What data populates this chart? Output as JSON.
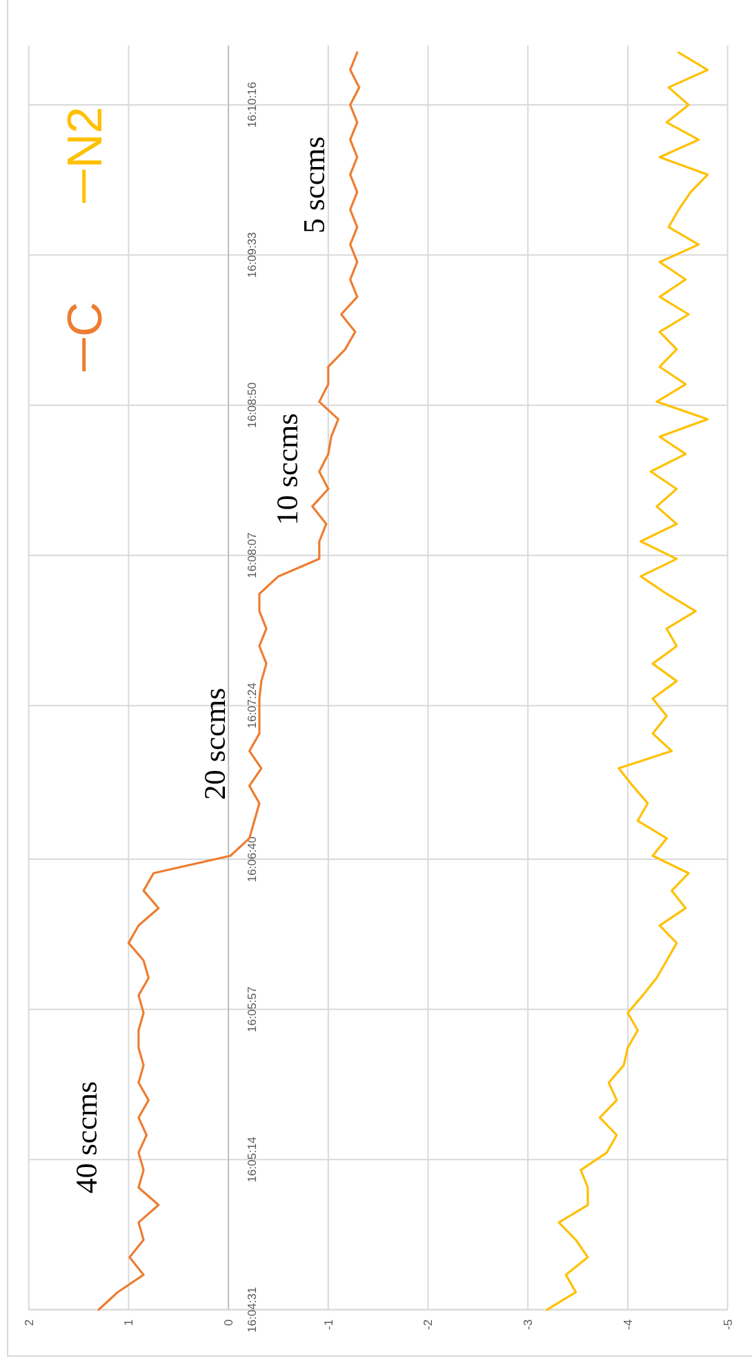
{
  "chart_data": {
    "type": "line",
    "series": [
      {
        "name": "C",
        "color": "#ed7d31",
        "x": [
          1.3,
          1.11,
          0.85,
          0.99,
          0.85,
          0.9,
          0.7,
          0.9,
          0.85,
          0.9,
          0.82,
          0.9,
          0.8,
          0.9,
          0.85,
          0.9,
          0.9,
          0.85,
          0.9,
          0.8,
          0.85,
          1.0,
          0.9,
          0.7,
          0.85,
          0.75,
          -0.02,
          -0.21,
          -0.26,
          -0.31,
          -0.21,
          -0.33,
          -0.21,
          -0.31,
          -0.31,
          -0.31,
          -0.33,
          -0.38,
          -0.31,
          -0.38,
          -0.31,
          -0.31,
          -0.5,
          -0.91,
          -0.91,
          -0.98,
          -0.84,
          -1.0,
          -0.91,
          -1.0,
          -1.03,
          -1.1,
          -0.91,
          -1.0,
          -1.0,
          -1.17,
          -1.27,
          -1.13,
          -1.29,
          -1.22,
          -1.29,
          -1.22,
          -1.29,
          -1.22,
          -1.29,
          -1.22,
          -1.29,
          -1.22,
          -1.29,
          -1.22,
          -1.31,
          -1.22,
          -1.29
        ],
        "values": [
          16.07528,
          16.07667,
          16.07806,
          16.07945,
          16.08084,
          16.08222,
          16.08361,
          16.085,
          16.08639,
          16.08778,
          16.08917,
          16.09056,
          16.09195,
          16.09334,
          16.09472,
          16.09611,
          16.0975,
          16.09889,
          16.10028,
          16.10167,
          16.10306,
          16.10445,
          16.10584,
          16.10722,
          16.10861,
          16.11,
          16.11139,
          16.11278,
          16.11417,
          16.11556,
          16.11695,
          16.11834,
          16.11972,
          16.12111,
          16.1225,
          16.12389,
          16.12528,
          16.12667,
          16.12806,
          16.12945,
          16.13084,
          16.13222,
          16.13361,
          16.135,
          16.13639,
          16.13778,
          16.13917,
          16.14056,
          16.14195,
          16.14334,
          16.14472,
          16.14611,
          16.1475,
          16.14889,
          16.15028,
          16.15167,
          16.15306,
          16.15445,
          16.15584,
          16.15722,
          16.15861,
          16.16,
          16.16139,
          16.16278,
          16.16417,
          16.16556,
          16.16695,
          16.16834,
          16.16972,
          16.17111,
          16.1725,
          16.17389,
          16.17528
        ]
      },
      {
        "name": "N2",
        "color": "#ffc000",
        "x": [
          -3.19,
          -3.48,
          -3.38,
          -3.6,
          -3.48,
          -3.31,
          -3.6,
          -3.6,
          -3.53,
          -3.79,
          -3.89,
          -3.72,
          -3.89,
          -3.81,
          -3.96,
          -4.0,
          -4.1,
          -4.0,
          -4.15,
          -4.29,
          -4.39,
          -4.49,
          -4.32,
          -4.58,
          -4.44,
          -4.61,
          -4.25,
          -4.39,
          -4.1,
          -4.2,
          -4.05,
          -3.91,
          -4.44,
          -4.25,
          -4.39,
          -4.25,
          -4.49,
          -4.25,
          -4.49,
          -4.39,
          -4.68,
          -4.39,
          -4.13,
          -4.49,
          -4.13,
          -4.49,
          -4.29,
          -4.49,
          -4.23,
          -4.58,
          -4.32,
          -4.8,
          -4.29,
          -4.58,
          -4.32,
          -4.49,
          -4.32,
          -4.61,
          -4.32,
          -4.58,
          -4.32,
          -4.71,
          -4.41,
          -4.51,
          -4.63,
          -4.8,
          -4.32,
          -4.71,
          -4.39,
          -4.61,
          -4.41,
          -4.8,
          -4.51
        ],
        "values": [
          16.07528,
          16.07667,
          16.07806,
          16.07945,
          16.08084,
          16.08222,
          16.08361,
          16.085,
          16.08639,
          16.08778,
          16.08917,
          16.09056,
          16.09195,
          16.09334,
          16.09472,
          16.09611,
          16.0975,
          16.09889,
          16.10028,
          16.10167,
          16.10306,
          16.10445,
          16.10584,
          16.10722,
          16.10861,
          16.11,
          16.11139,
          16.11278,
          16.11417,
          16.11556,
          16.11695,
          16.11834,
          16.11972,
          16.12111,
          16.1225,
          16.12389,
          16.12528,
          16.12667,
          16.12806,
          16.12945,
          16.13084,
          16.13222,
          16.13361,
          16.135,
          16.13639,
          16.13778,
          16.13917,
          16.14056,
          16.14195,
          16.14334,
          16.14472,
          16.14611,
          16.1475,
          16.14889,
          16.15028,
          16.15167,
          16.15306,
          16.15445,
          16.15584,
          16.15722,
          16.15861,
          16.16,
          16.16139,
          16.16278,
          16.16417,
          16.16556,
          16.16695,
          16.16834,
          16.16972,
          16.17111,
          16.1725,
          16.17389,
          16.17528
        ]
      }
    ],
    "xlim": [
      2,
      -5
    ],
    "xticks": [
      2,
      1,
      0,
      -1,
      -2,
      -3,
      -4,
      -5
    ],
    "ylim": [
      16.07528,
      16.17583
    ],
    "yticks": [
      {
        "value": 16.07528,
        "label": "16:04:31"
      },
      {
        "value": 16.08722,
        "label": "16:05:14"
      },
      {
        "value": 16.09917,
        "label": "16:05:57"
      },
      {
        "value": 16.11111,
        "label": "16:06:40"
      },
      {
        "value": 16.12333,
        "label": "16:07:24"
      },
      {
        "value": 16.13528,
        "label": "16:08:07"
      },
      {
        "value": 16.14722,
        "label": "16:08:50"
      },
      {
        "value": 16.15917,
        "label": "16:09:33"
      },
      {
        "value": 16.17111,
        "label": "16:10:16"
      }
    ],
    "grid": true,
    "legend": "top left",
    "marker": "none",
    "line_style": "solid",
    "annotations": [
      "40 sccms",
      "20 sccms",
      "10 sccms",
      "5 sccms"
    ]
  }
}
